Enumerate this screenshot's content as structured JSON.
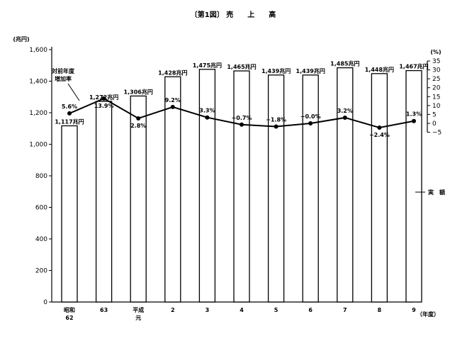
{
  "chart_data": {
    "type": "bar",
    "title": "〔第1図〕 売　　上　　高",
    "categories": [
      [
        "昭和",
        "62"
      ],
      [
        "63"
      ],
      [
        "平成",
        "元"
      ],
      [
        "2"
      ],
      [
        "3"
      ],
      [
        "4"
      ],
      [
        "5"
      ],
      [
        "6"
      ],
      [
        "7"
      ],
      [
        "8"
      ],
      [
        "9"
      ]
    ],
    "x_unit": "（年度）",
    "y_left": {
      "unit": "(兆円)",
      "range": [
        0,
        1600
      ],
      "ticks": [
        "0",
        "200",
        "400",
        "600",
        "800",
        "1,000",
        "1,200",
        "1,400",
        "1,600"
      ]
    },
    "y_right": {
      "unit": "(%)",
      "range": [
        -5,
        35
      ],
      "ticks": [
        "−5",
        "0",
        "5",
        "10",
        "15",
        "20",
        "25",
        "30",
        "35"
      ]
    },
    "series": [
      {
        "name": "実　額",
        "kind": "bar",
        "axis": "left",
        "values": [
          1117,
          1272,
          1306,
          1428,
          1475,
          1465,
          1439,
          1439,
          1485,
          1448,
          1467
        ],
        "labels": [
          "1,117兆円",
          "1,272兆円",
          "1,306兆円",
          "1,428兆円",
          "1,475兆円",
          "1,465兆円",
          "1,439兆円",
          "1,439兆円",
          "1,485兆円",
          "1,448兆円",
          "1,467兆円"
        ]
      },
      {
        "name": [
          "対前年度",
          "増加率"
        ],
        "kind": "line",
        "axis": "right",
        "values": [
          5.6,
          13.9,
          2.8,
          9.2,
          3.3,
          -0.7,
          -1.8,
          -0.0,
          3.2,
          -2.4,
          1.3
        ],
        "labels": [
          "5.6%",
          "13.9%",
          "2.8%",
          "9.2%",
          "3.3%",
          "−0.7%",
          "−1.8%",
          "−0.0%",
          "3.2%",
          "−2.4%",
          "1.3%"
        ]
      }
    ],
    "grid": false,
    "colors": {
      "ink": "#000000",
      "bar_fill": "#ffffff"
    }
  }
}
